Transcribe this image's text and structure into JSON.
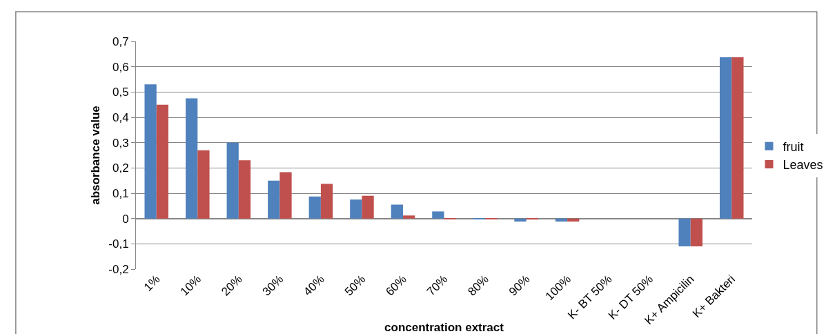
{
  "chart_data": {
    "type": "bar",
    "xlabel": "concentration extract",
    "ylabel": "absorbance value",
    "categories": [
      "1%",
      "10%",
      "20%",
      "30%",
      "40%",
      "50%",
      "60%",
      "70%",
      "80%",
      "90%",
      "100%",
      "K- BT 50%",
      "K- DT 50%",
      "K+ Ampicilin",
      "K+ Bakteri"
    ],
    "series": [
      {
        "name": "fruit",
        "color": "#4f81bd",
        "values": [
          0.53,
          0.475,
          0.3,
          0.15,
          0.087,
          0.075,
          0.055,
          0.028,
          -0.002,
          -0.012,
          -0.012,
          0,
          0,
          -0.11,
          0.637
        ]
      },
      {
        "name": "Leaves",
        "color": "#c0504d",
        "values": [
          0.45,
          0.27,
          0.23,
          0.183,
          0.137,
          0.09,
          0.012,
          -0.002,
          -0.002,
          -0.004,
          -0.012,
          0,
          0,
          -0.11,
          0.637
        ]
      }
    ],
    "ylim": [
      -0.2,
      0.7
    ],
    "yticks": [
      {
        "value": -0.2,
        "label": "-0,2"
      },
      {
        "value": -0.1,
        "label": "-0,1"
      },
      {
        "value": 0,
        "label": "0"
      },
      {
        "value": 0.1,
        "label": "0,1"
      },
      {
        "value": 0.2,
        "label": "0,2"
      },
      {
        "value": 0.3,
        "label": "0,3"
      },
      {
        "value": 0.4,
        "label": "0,4"
      },
      {
        "value": 0.5,
        "label": "0,5"
      },
      {
        "value": 0.6,
        "label": "0,6"
      },
      {
        "value": 0.7,
        "label": "0,7"
      }
    ],
    "grid": "y",
    "legend": "right"
  }
}
